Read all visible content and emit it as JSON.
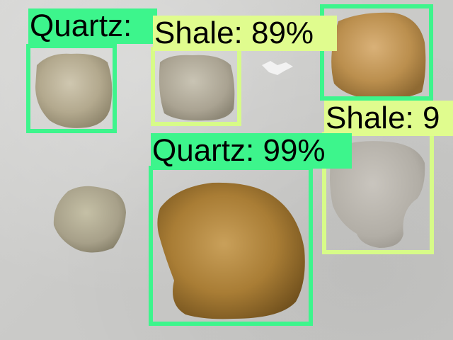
{
  "image": {
    "description_colors": {
      "quartz_box": "#3df58c",
      "shale_box": "#d7fb88",
      "background": "#cfcfcd"
    }
  },
  "detections": [
    {
      "id": "d1",
      "class": "quartz",
      "text": "Quartz:"
    },
    {
      "id": "d2",
      "class": "shale",
      "text": "Shale: 89%"
    },
    {
      "id": "d3",
      "class": "quartz",
      "text": ""
    },
    {
      "id": "d4",
      "class": "shale",
      "text": "Shale: 9"
    },
    {
      "id": "d5",
      "class": "quartz",
      "text": "Quartz: 99%"
    }
  ]
}
